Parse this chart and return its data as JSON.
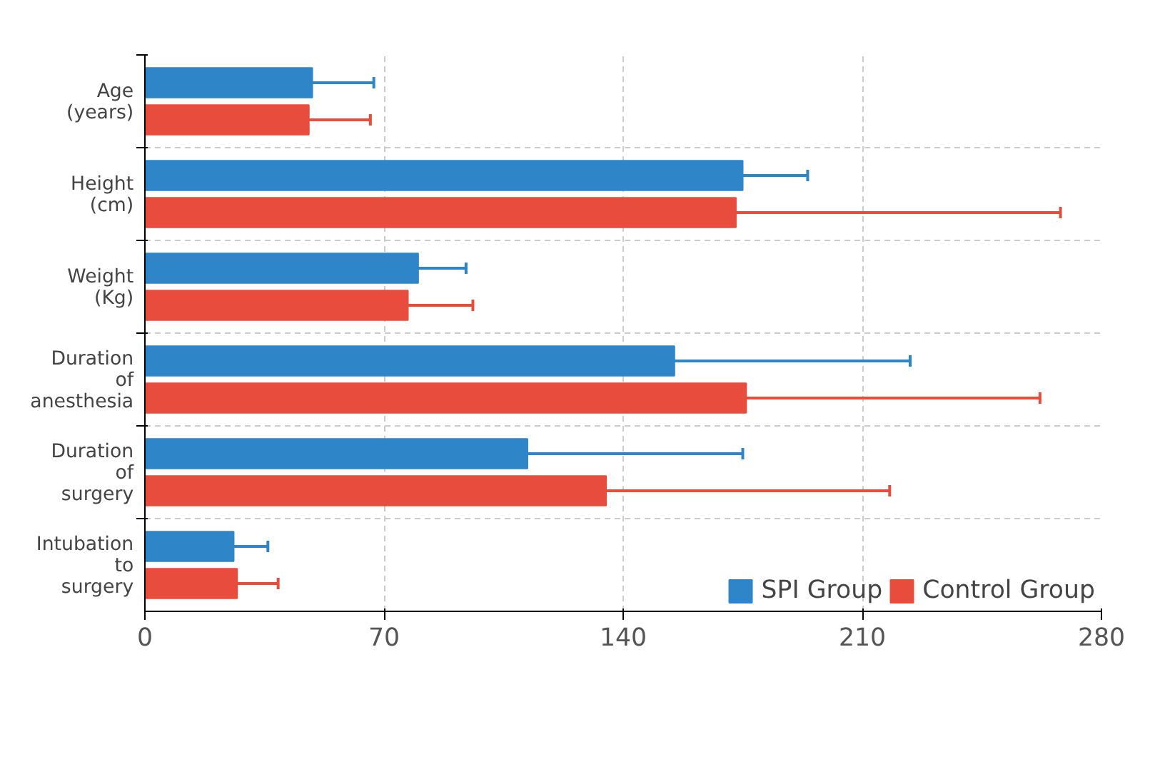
{
  "chart_data": {
    "type": "bar",
    "orientation": "horizontal",
    "categories": [
      "Age (years)",
      "Height (cm)",
      "Weight (Kg)",
      "Duration of anesthesia",
      "Duration of surgery",
      "Intubation to surgery"
    ],
    "series": [
      {
        "name": "SPI Group",
        "color": "#2e86c8",
        "values": [
          49,
          175,
          80,
          155,
          112,
          26
        ],
        "errors": [
          18,
          19,
          14,
          69,
          63,
          10
        ]
      },
      {
        "name": "Control Group",
        "color": "#e84c3d",
        "values": [
          48,
          173,
          77,
          176,
          135,
          27
        ],
        "errors": [
          18,
          95,
          19,
          86,
          83,
          12
        ]
      }
    ],
    "xlim": [
      0,
      280
    ],
    "xticks": [
      0,
      70,
      140,
      210,
      280
    ],
    "grid": true,
    "legend": "bottom right"
  }
}
